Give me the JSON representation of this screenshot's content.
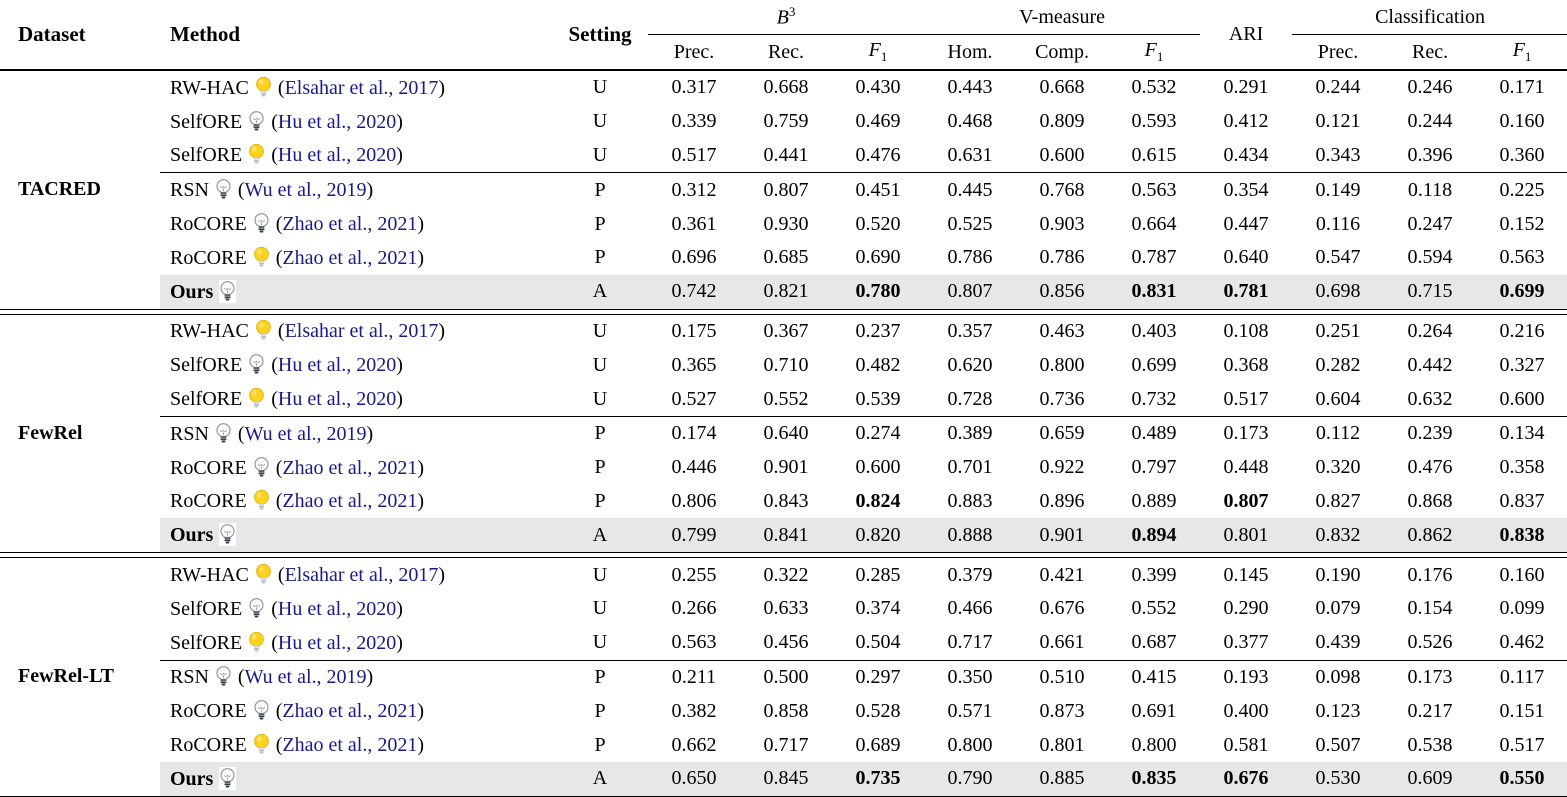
{
  "colors": {
    "citation_text": "#1a1a87",
    "highlight_row_bg": "#e7e7e7",
    "bulb_on_fill": "#FFD21E",
    "bulb_on_stroke": "#E3AF0F",
    "bulb_off_fill": "#fbfbfc",
    "bulb_off_stroke": "#8a8f98",
    "bulb_base_dark": "#343d47",
    "rule_color": "#000000"
  },
  "header": {
    "dataset": "Dataset",
    "method": "Method",
    "setting": "Setting",
    "b3": {
      "math": "B",
      "sup": "3"
    },
    "vmeasure": "V-measure",
    "ari": "ARI",
    "classification": "Classification",
    "subcols": [
      {
        "key": "b3-prec",
        "text": "Prec."
      },
      {
        "key": "b3-rec",
        "text": "Rec."
      },
      {
        "key": "b3-f1",
        "math": "F",
        "sub": "1"
      },
      {
        "key": "vm-hom",
        "text": "Hom."
      },
      {
        "key": "vm-comp",
        "text": "Comp."
      },
      {
        "key": "vm-f1",
        "math": "F",
        "sub": "1"
      },
      {
        "key": "cls-prec",
        "text": "Prec."
      },
      {
        "key": "cls-rec",
        "text": "Rec."
      },
      {
        "key": "cls-f1",
        "math": "F",
        "sub": "1"
      }
    ]
  },
  "citation_parens": {
    "open": "(",
    "close": ")"
  },
  "groups": [
    {
      "dataset": "TACRED",
      "rows": [
        {
          "method": "RW-HAC",
          "bulb": "on",
          "cite": "Elsahar et al., 2017",
          "setting": "U",
          "values": [
            "0.317",
            "0.668",
            "0.430",
            "0.443",
            "0.668",
            "0.532",
            "0.291",
            "0.244",
            "0.246",
            "0.171"
          ],
          "bold_values": []
        },
        {
          "method": "SelfORE",
          "bulb": "off",
          "cite": "Hu et al., 2020",
          "setting": "U",
          "values": [
            "0.339",
            "0.759",
            "0.469",
            "0.468",
            "0.809",
            "0.593",
            "0.412",
            "0.121",
            "0.244",
            "0.160"
          ],
          "bold_values": []
        },
        {
          "method": "SelfORE",
          "bulb": "on",
          "cite": "Hu et al., 2020",
          "setting": "U",
          "values": [
            "0.517",
            "0.441",
            "0.476",
            "0.631",
            "0.600",
            "0.615",
            "0.434",
            "0.343",
            "0.396",
            "0.360"
          ],
          "bold_values": []
        },
        {
          "method": "RSN",
          "bulb": "off",
          "cite": "Wu et al., 2019",
          "setting": "P",
          "values": [
            "0.312",
            "0.807",
            "0.451",
            "0.445",
            "0.768",
            "0.563",
            "0.354",
            "0.149",
            "0.118",
            "0.225"
          ],
          "bold_values": []
        },
        {
          "method": "RoCORE",
          "bulb": "off",
          "cite": "Zhao et al., 2021",
          "setting": "P",
          "values": [
            "0.361",
            "0.930",
            "0.520",
            "0.525",
            "0.903",
            "0.664",
            "0.447",
            "0.116",
            "0.247",
            "0.152"
          ],
          "bold_values": []
        },
        {
          "method": "RoCORE",
          "bulb": "on",
          "cite": "Zhao et al., 2021",
          "setting": "P",
          "values": [
            "0.696",
            "0.685",
            "0.690",
            "0.786",
            "0.786",
            "0.787",
            "0.640",
            "0.547",
            "0.594",
            "0.563"
          ],
          "bold_values": []
        },
        {
          "method": "Ours",
          "bulb": "off",
          "cite": "",
          "setting": "A",
          "values": [
            "0.742",
            "0.821",
            "0.780",
            "0.807",
            "0.856",
            "0.831",
            "0.781",
            "0.698",
            "0.715",
            "0.699"
          ],
          "bold_values": [
            2,
            5,
            6,
            9
          ],
          "highlight": true,
          "bold_method": true
        }
      ]
    },
    {
      "dataset": "FewRel",
      "rows": [
        {
          "method": "RW-HAC",
          "bulb": "on",
          "cite": "Elsahar et al., 2017",
          "setting": "U",
          "values": [
            "0.175",
            "0.367",
            "0.237",
            "0.357",
            "0.463",
            "0.403",
            "0.108",
            "0.251",
            "0.264",
            "0.216"
          ],
          "bold_values": []
        },
        {
          "method": "SelfORE",
          "bulb": "off",
          "cite": "Hu et al., 2020",
          "setting": "U",
          "values": [
            "0.365",
            "0.710",
            "0.482",
            "0.620",
            "0.800",
            "0.699",
            "0.368",
            "0.282",
            "0.442",
            "0.327"
          ],
          "bold_values": []
        },
        {
          "method": "SelfORE",
          "bulb": "on",
          "cite": "Hu et al., 2020",
          "setting": "U",
          "values": [
            "0.527",
            "0.552",
            "0.539",
            "0.728",
            "0.736",
            "0.732",
            "0.517",
            "0.604",
            "0.632",
            "0.600"
          ],
          "bold_values": []
        },
        {
          "method": "RSN",
          "bulb": "off",
          "cite": "Wu et al., 2019",
          "setting": "P",
          "values": [
            "0.174",
            "0.640",
            "0.274",
            "0.389",
            "0.659",
            "0.489",
            "0.173",
            "0.112",
            "0.239",
            "0.134"
          ],
          "bold_values": []
        },
        {
          "method": "RoCORE",
          "bulb": "off",
          "cite": "Zhao et al., 2021",
          "setting": "P",
          "values": [
            "0.446",
            "0.901",
            "0.600",
            "0.701",
            "0.922",
            "0.797",
            "0.448",
            "0.320",
            "0.476",
            "0.358"
          ],
          "bold_values": []
        },
        {
          "method": "RoCORE",
          "bulb": "on",
          "cite": "Zhao et al., 2021",
          "setting": "P",
          "values": [
            "0.806",
            "0.843",
            "0.824",
            "0.883",
            "0.896",
            "0.889",
            "0.807",
            "0.827",
            "0.868",
            "0.837"
          ],
          "bold_values": [
            2,
            6
          ]
        },
        {
          "method": "Ours",
          "bulb": "off",
          "cite": "",
          "setting": "A",
          "values": [
            "0.799",
            "0.841",
            "0.820",
            "0.888",
            "0.901",
            "0.894",
            "0.801",
            "0.832",
            "0.862",
            "0.838"
          ],
          "bold_values": [
            5,
            9
          ],
          "highlight": true,
          "bold_method": true
        }
      ]
    },
    {
      "dataset": "FewRel-LT",
      "rows": [
        {
          "method": "RW-HAC",
          "bulb": "on",
          "cite": "Elsahar et al., 2017",
          "setting": "U",
          "values": [
            "0.255",
            "0.322",
            "0.285",
            "0.379",
            "0.421",
            "0.399",
            "0.145",
            "0.190",
            "0.176",
            "0.160"
          ],
          "bold_values": []
        },
        {
          "method": "SelfORE",
          "bulb": "off",
          "cite": "Hu et al., 2020",
          "setting": "U",
          "values": [
            "0.266",
            "0.633",
            "0.374",
            "0.466",
            "0.676",
            "0.552",
            "0.290",
            "0.079",
            "0.154",
            "0.099"
          ],
          "bold_values": []
        },
        {
          "method": "SelfORE",
          "bulb": "on",
          "cite": "Hu et al., 2020",
          "setting": "U",
          "values": [
            "0.563",
            "0.456",
            "0.504",
            "0.717",
            "0.661",
            "0.687",
            "0.377",
            "0.439",
            "0.526",
            "0.462"
          ],
          "bold_values": []
        },
        {
          "method": "RSN",
          "bulb": "off",
          "cite": "Wu et al., 2019",
          "setting": "P",
          "values": [
            "0.211",
            "0.500",
            "0.297",
            "0.350",
            "0.510",
            "0.415",
            "0.193",
            "0.098",
            "0.173",
            "0.117"
          ],
          "bold_values": []
        },
        {
          "method": "RoCORE",
          "bulb": "off",
          "cite": "Zhao et al., 2021",
          "setting": "P",
          "values": [
            "0.382",
            "0.858",
            "0.528",
            "0.571",
            "0.873",
            "0.691",
            "0.400",
            "0.123",
            "0.217",
            "0.151"
          ],
          "bold_values": []
        },
        {
          "method": "RoCORE",
          "bulb": "on",
          "cite": "Zhao et al., 2021",
          "setting": "P",
          "values": [
            "0.662",
            "0.717",
            "0.689",
            "0.800",
            "0.801",
            "0.800",
            "0.581",
            "0.507",
            "0.538",
            "0.517"
          ],
          "bold_values": []
        },
        {
          "method": "Ours",
          "bulb": "off",
          "cite": "",
          "setting": "A",
          "values": [
            "0.650",
            "0.845",
            "0.735",
            "0.790",
            "0.885",
            "0.835",
            "0.676",
            "0.530",
            "0.609",
            "0.550"
          ],
          "bold_values": [
            2,
            5,
            6,
            9
          ],
          "highlight": true,
          "bold_method": true
        }
      ]
    }
  ]
}
